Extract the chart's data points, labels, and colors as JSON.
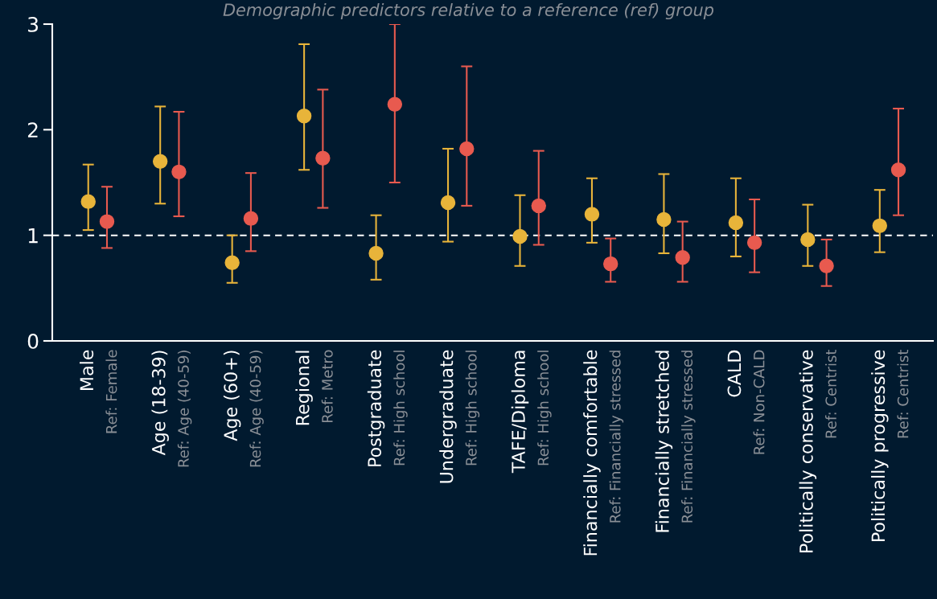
{
  "chart_data": {
    "type": "scatter",
    "subtitle": "Demographic predictors relative to a reference (ref) group",
    "categories": [
      "Male\nRef: Female",
      "Age (18-39)\nRef: Age (40-59)",
      "Age (60+)\nRef: Age (40-59)",
      "Regional\nRef: Metro",
      "Postgraduate\nRef: High school",
      "Undergraduate\nRef: High school",
      "TAFE/Diploma\nRef: High school",
      "Financially comfortable\nRef: Financially stressed",
      "Financially stretched\nRef: Financially stressed",
      "CALD\nRef: Non-CALD",
      "Politically conservative\nRef: Centrist",
      "Politically progressive\nRef: Centrist"
    ],
    "series": [
      {
        "color": "#e8b43a",
        "values": [
          1.32,
          1.7,
          0.74,
          2.13,
          0.83,
          1.31,
          0.99,
          1.2,
          1.15,
          1.12,
          0.96,
          1.09
        ],
        "errors": [
          [
            1.05,
            1.67
          ],
          [
            1.3,
            2.22
          ],
          [
            0.55,
            1.0
          ],
          [
            1.62,
            2.81
          ],
          [
            0.58,
            1.19
          ],
          [
            0.94,
            1.82
          ],
          [
            0.71,
            1.38
          ],
          [
            0.93,
            1.54
          ],
          [
            0.83,
            1.58
          ],
          [
            0.8,
            1.54
          ],
          [
            0.71,
            1.29
          ],
          [
            0.84,
            1.43
          ]
        ]
      },
      {
        "color": "#e85a4f",
        "values": [
          1.13,
          1.6,
          1.16,
          1.73,
          2.24,
          1.82,
          1.28,
          0.73,
          0.79,
          0.93,
          0.71,
          1.62
        ],
        "errors": [
          [
            0.88,
            1.46
          ],
          [
            1.18,
            2.17
          ],
          [
            0.85,
            1.59
          ],
          [
            1.26,
            2.38
          ],
          [
            1.5,
            3.0
          ],
          [
            1.28,
            2.6
          ],
          [
            0.91,
            1.8
          ],
          [
            0.56,
            0.97
          ],
          [
            0.56,
            1.13
          ],
          [
            0.65,
            1.34
          ],
          [
            0.52,
            0.96
          ],
          [
            1.19,
            2.2
          ]
        ]
      }
    ],
    "ylim": [
      0,
      3
    ],
    "yticks": [
      0,
      1,
      2,
      3
    ],
    "grid": false,
    "legend": false,
    "marker": "circle",
    "ref_lines": [
      {
        "axis": "y",
        "value": 1,
        "color": "#ffffff",
        "line_style": "dashed"
      }
    ]
  }
}
